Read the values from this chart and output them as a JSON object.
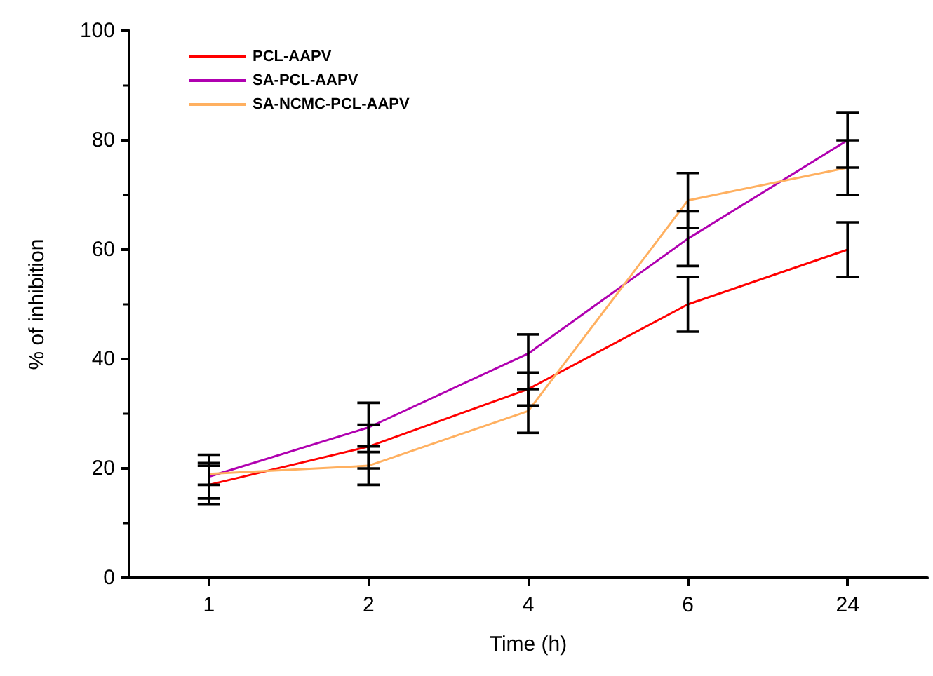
{
  "chart_data": {
    "type": "line",
    "xlabel": "Time (h)",
    "ylabel": "% of inhibition",
    "categories": [
      "1",
      "2",
      "4",
      "6",
      "24"
    ],
    "series": [
      {
        "name": "PCL-AAPV",
        "color": "#ff0000",
        "values": [
          17,
          24,
          34.5,
          50,
          60
        ],
        "errors": [
          3.5,
          4,
          3,
          5,
          5
        ]
      },
      {
        "name": "SA-PCL-AAPV",
        "color": "#b000b0",
        "values": [
          18.5,
          27.5,
          41,
          62,
          80
        ],
        "errors": [
          4,
          4.5,
          3.5,
          5,
          5
        ]
      },
      {
        "name": "SA-NCMC-PCL-AAPV",
        "color": "#ffb060",
        "values": [
          19,
          20.5,
          30.5,
          69,
          75
        ],
        "errors": [
          2,
          3.5,
          4,
          5,
          5
        ]
      }
    ],
    "ylim": [
      0,
      100
    ],
    "yticks": [
      0,
      20,
      40,
      60,
      80,
      100
    ],
    "grid": false,
    "legend": "top left",
    "marker": "none",
    "line_style": "solid"
  }
}
